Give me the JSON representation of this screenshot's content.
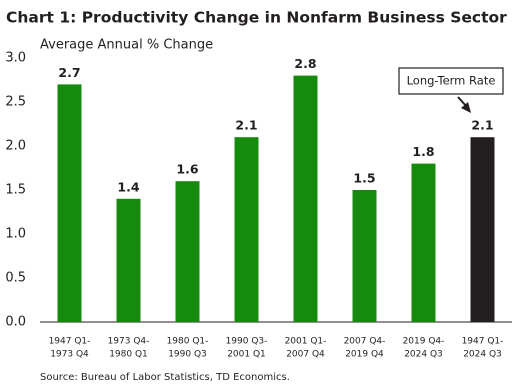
{
  "chart_data": {
    "type": "bar",
    "title": "Chart 1: Productivity Change in Nonfarm Business Sector",
    "subtitle": "Average Annual % Change",
    "categories": [
      [
        "1947 Q1-",
        "1973 Q4"
      ],
      [
        "1973 Q4-",
        "1980 Q1"
      ],
      [
        "1980 Q1-",
        "1990 Q3"
      ],
      [
        "1990 Q3-",
        "2001 Q1"
      ],
      [
        "2001 Q1-",
        "2007 Q4"
      ],
      [
        "2007 Q4-",
        "2019 Q4"
      ],
      [
        "2019 Q4-",
        "2024 Q3"
      ],
      [
        "1947 Q1-",
        "2024 Q3"
      ]
    ],
    "values": [
      2.7,
      1.4,
      1.6,
      2.1,
      2.8,
      1.5,
      1.8,
      2.1
    ],
    "colors": [
      "#168a0c",
      "#168a0c",
      "#168a0c",
      "#168a0c",
      "#168a0c",
      "#168a0c",
      "#168a0c",
      "#231f20"
    ],
    "ylim": [
      0,
      3
    ],
    "yticks": [
      {
        "value": 0,
        "label": "0.0"
      },
      {
        "value": 0.5,
        "label": "0.5"
      },
      {
        "value": 1,
        "label": "1.0"
      },
      {
        "value": 1.5,
        "label": "1.5"
      },
      {
        "value": 2,
        "label": "2.0"
      },
      {
        "value": 2.5,
        "label": "2.5"
      },
      {
        "value": 3,
        "label": "3.0"
      }
    ],
    "annotation": "Long-Term Rate",
    "source": "Source: Bureau of Labor Statistics, TD Economics."
  }
}
